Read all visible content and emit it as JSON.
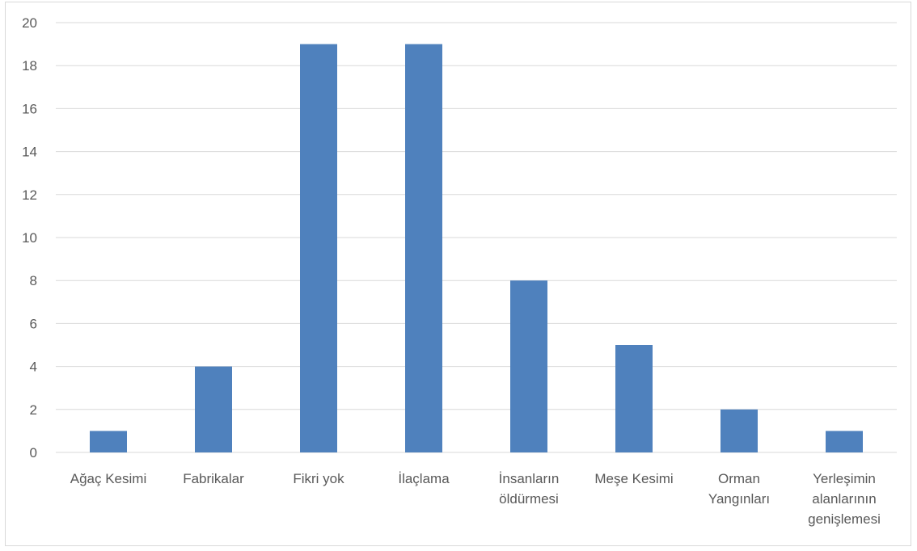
{
  "chart_data": {
    "type": "bar",
    "title": "",
    "xlabel": "",
    "ylabel": "",
    "categories": [
      [
        "Ağaç Kesimi"
      ],
      [
        "Fabrikalar"
      ],
      [
        "Fikri yok"
      ],
      [
        "İlaçlama"
      ],
      [
        "İnsanların",
        "öldürmesi"
      ],
      [
        "Meşe Kesimi"
      ],
      [
        "Orman",
        "Yangınları"
      ],
      [
        "Yerleşimin",
        "alanlarının",
        "genişlemesi"
      ]
    ],
    "values": [
      1,
      4,
      19,
      19,
      8,
      5,
      2,
      1
    ],
    "ylim": [
      0,
      20
    ],
    "yticks": [
      "0",
      "2",
      "4",
      "6",
      "8",
      "10",
      "12",
      "14",
      "16",
      "18",
      "20"
    ],
    "grid": true,
    "legend": "none",
    "colors": {
      "bar": "#4f81bd",
      "grid": "#d9d9d9",
      "axis": "#d9d9d9",
      "text": "#595959"
    }
  }
}
